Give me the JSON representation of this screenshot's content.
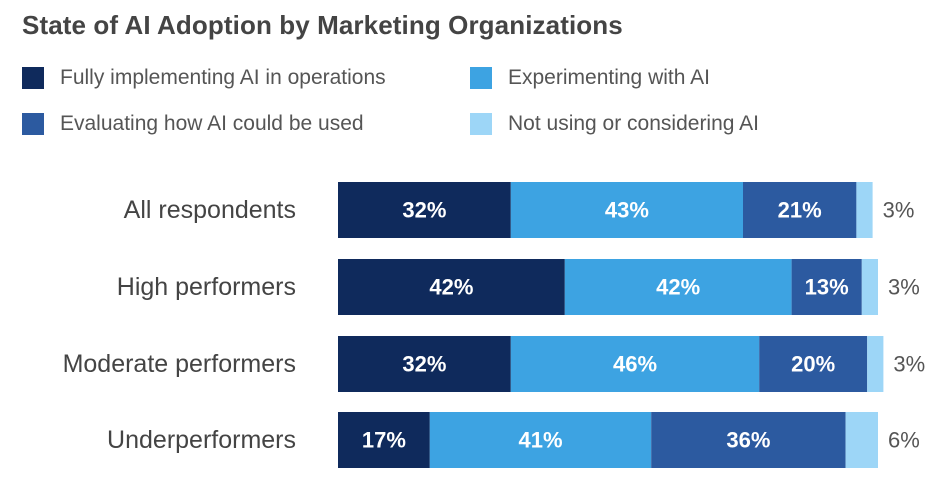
{
  "title": "State of AI Adoption by Marketing Organizations",
  "chart_data": {
    "type": "bar",
    "orientation": "horizontal",
    "stacked": true,
    "title": "State of AI Adoption by Marketing Organizations",
    "categories": [
      "All respondents",
      "High performers",
      "Moderate performers",
      "Underperformers"
    ],
    "series": [
      {
        "name": "Fully implementing AI in operations",
        "values": [
          32,
          42,
          32,
          17
        ],
        "labels": [
          "32%",
          "42%",
          "32%",
          "17%"
        ],
        "color": "#0f2a5c"
      },
      {
        "name": "Experimenting with AI",
        "values": [
          43,
          42,
          46,
          41
        ],
        "labels": [
          "43%",
          "42%",
          "46%",
          "41%"
        ],
        "color": "#3da3e2"
      },
      {
        "name": "Evaluating how AI could be used",
        "values": [
          21,
          13,
          20,
          36
        ],
        "labels": [
          "21%",
          "13%",
          "20%",
          "36%"
        ],
        "color": "#2c5aa0"
      },
      {
        "name": "Not using or considering AI",
        "values": [
          3,
          3,
          3,
          6
        ],
        "labels": [
          "3%",
          "3%",
          "3%",
          "6%"
        ],
        "color": "#9dd6f7"
      }
    ],
    "legend_position": "top",
    "grid": false,
    "xlim": [
      0,
      100
    ]
  },
  "legend": [
    {
      "label": "Fully implementing AI in operations",
      "color": "#0f2a5c"
    },
    {
      "label": "Experimenting with AI",
      "color": "#3da3e2"
    },
    {
      "label": "Evaluating how AI could be used",
      "color": "#2c5aa0"
    },
    {
      "label": "Not using or considering AI",
      "color": "#9dd6f7"
    }
  ]
}
